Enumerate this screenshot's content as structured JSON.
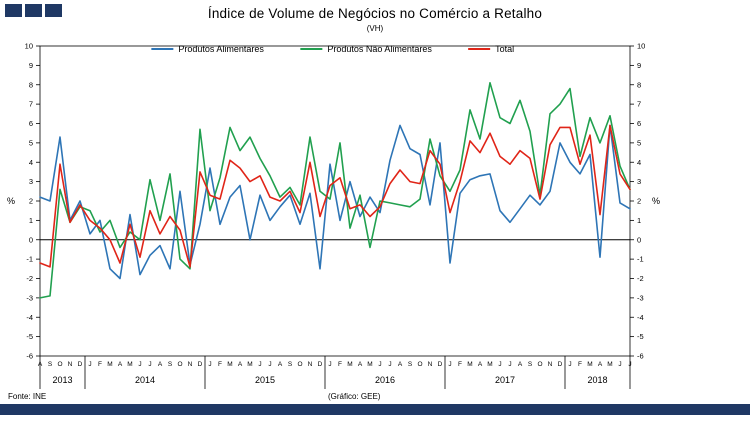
{
  "branding": {
    "squares_color": "#1F3864",
    "bar_color": "#1F3864"
  },
  "header": {
    "title": "Índice de Volume de Negócios no Comércio a Retalho",
    "subtitle": "(VH)"
  },
  "footer": {
    "source": "Fonte: INE",
    "credit": "(Gráfico: GEE)"
  },
  "chart_data": {
    "type": "line",
    "title": "Índice de Volume de Negócios no Comércio a Retalho (VH)",
    "ylabel_left": "%",
    "ylabel_right": "%",
    "ylim": [
      -6,
      10
    ],
    "ytick_step": 1,
    "grid": false,
    "legend_position": "top-center",
    "year_groups": [
      {
        "label": "2013",
        "months": "ASOND"
      },
      {
        "label": "2014",
        "months": "JFMAMJJASOND"
      },
      {
        "label": "2015",
        "months": "JFMAMJJASOND"
      },
      {
        "label": "2016",
        "months": "JFMAMJJASOND"
      },
      {
        "label": "2017",
        "months": "JFMAMJJASOND"
      },
      {
        "label": "2018",
        "months": "JFMAMJJ"
      }
    ],
    "series": [
      {
        "name": "Produtos Alimentares",
        "color": "#2E75B6",
        "values": [
          2.2,
          2.0,
          5.3,
          1.0,
          2.0,
          0.3,
          1.0,
          -1.5,
          -2.0,
          1.3,
          -1.8,
          -0.8,
          -0.3,
          -1.5,
          2.5,
          -1.3,
          0.8,
          3.7,
          0.8,
          2.2,
          2.8,
          0.0,
          2.3,
          1.0,
          1.7,
          2.3,
          0.8,
          2.4,
          -1.5,
          3.9,
          1.0,
          3.0,
          1.2,
          2.2,
          1.4,
          4.1,
          5.9,
          4.7,
          4.4,
          1.8,
          5.0,
          -1.2,
          2.4,
          3.1,
          3.3,
          3.4,
          1.5,
          0.9,
          1.6,
          2.3,
          1.8,
          2.5,
          5.0,
          4.0,
          3.4,
          4.4,
          -0.9,
          5.9,
          1.9,
          1.6
        ]
      },
      {
        "name": "Produtos Não Alimentares",
        "color": "#21A04F",
        "values": [
          -3.0,
          -2.9,
          2.6,
          0.9,
          1.7,
          1.5,
          0.4,
          1.0,
          -0.4,
          0.4,
          0.0,
          3.1,
          1.0,
          3.4,
          -1.0,
          -1.5,
          5.7,
          1.5,
          3.2,
          5.8,
          4.6,
          5.3,
          4.2,
          3.3,
          2.2,
          2.7,
          1.8,
          5.3,
          2.5,
          2.1,
          5.0,
          0.6,
          2.3,
          -0.4,
          2.0,
          1.9,
          1.8,
          1.7,
          2.1,
          5.2,
          3.3,
          2.5,
          3.6,
          6.7,
          5.2,
          8.1,
          6.3,
          6.0,
          7.2,
          5.6,
          2.3,
          6.5,
          7.0,
          7.8,
          4.3,
          6.3,
          5.0,
          6.4,
          3.8,
          2.6
        ]
      },
      {
        "name": "Total",
        "color": "#E02518",
        "values": [
          -1.2,
          -1.4,
          3.9,
          0.9,
          1.8,
          1.0,
          0.6,
          0.0,
          -1.2,
          0.8,
          -0.9,
          1.5,
          0.3,
          1.2,
          0.5,
          -1.4,
          3.5,
          2.3,
          2.1,
          4.1,
          3.7,
          3.0,
          3.3,
          2.2,
          2.0,
          2.5,
          1.4,
          4.0,
          1.2,
          2.8,
          3.2,
          1.6,
          1.8,
          1.2,
          1.7,
          2.9,
          3.6,
          3.0,
          2.9,
          4.6,
          3.9,
          1.4,
          3.0,
          5.1,
          4.5,
          5.5,
          4.3,
          3.9,
          4.6,
          4.2,
          2.1,
          4.9,
          5.8,
          5.8,
          3.9,
          5.4,
          1.3,
          5.9,
          3.4,
          2.6
        ]
      }
    ]
  }
}
